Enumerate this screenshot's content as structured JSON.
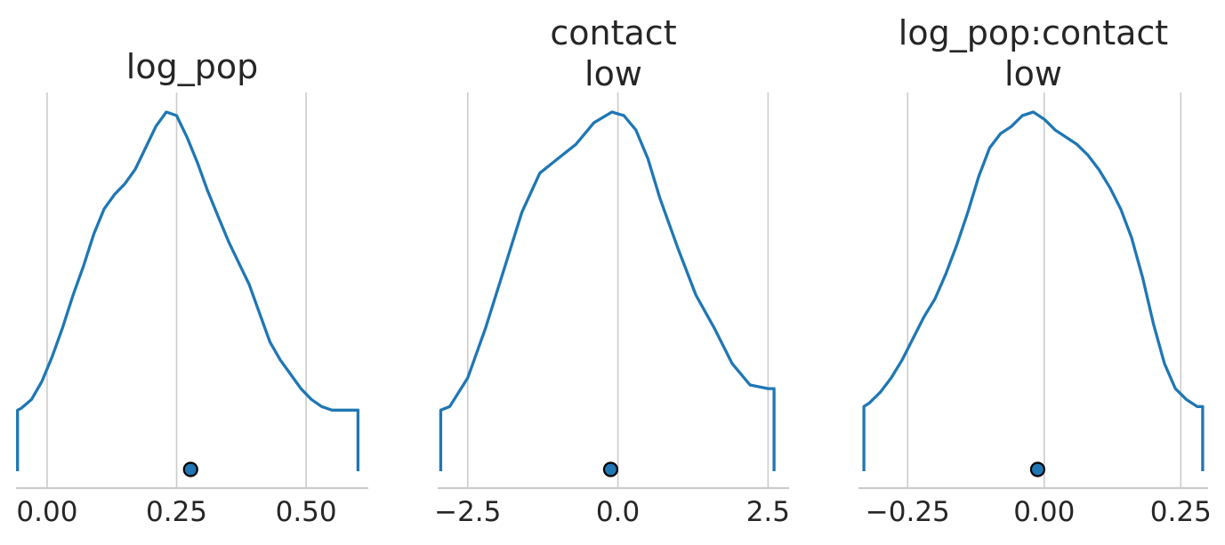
{
  "colors": {
    "curve": "#1f77b4",
    "point": "#1f77b4"
  },
  "chart_data": [
    {
      "type": "line",
      "title_lines": [
        "log_pop"
      ],
      "xlim": [
        -0.06,
        0.62
      ],
      "xticks": [
        0.0,
        0.25,
        0.5
      ],
      "xtick_labels": [
        "0.00",
        "0.25",
        "0.50"
      ],
      "grid": true,
      "x": [
        -0.057,
        -0.05,
        -0.03,
        -0.01,
        0.01,
        0.03,
        0.05,
        0.07,
        0.09,
        0.11,
        0.13,
        0.15,
        0.17,
        0.19,
        0.21,
        0.23,
        0.25,
        0.27,
        0.29,
        0.31,
        0.33,
        0.35,
        0.37,
        0.39,
        0.41,
        0.43,
        0.45,
        0.47,
        0.49,
        0.51,
        0.53,
        0.55,
        0.57,
        0.59,
        0.6
      ],
      "density": [
        0.17,
        0.175,
        0.2,
        0.25,
        0.32,
        0.4,
        0.49,
        0.57,
        0.66,
        0.73,
        0.77,
        0.8,
        0.84,
        0.9,
        0.96,
        1.0,
        0.99,
        0.93,
        0.86,
        0.78,
        0.71,
        0.64,
        0.58,
        0.52,
        0.44,
        0.36,
        0.31,
        0.27,
        0.23,
        0.2,
        0.18,
        0.17,
        0.17,
        0.17,
        0.17
      ],
      "point_estimate": 0.277
    },
    {
      "type": "line",
      "title_lines": [
        "contact",
        "low"
      ],
      "xlim": [
        -3.0,
        2.85
      ],
      "xticks": [
        -2.5,
        0.0,
        2.5
      ],
      "xtick_labels": [
        "−2.5",
        "0.0",
        "2.5"
      ],
      "grid": true,
      "x": [
        -2.95,
        -2.8,
        -2.5,
        -2.2,
        -1.9,
        -1.6,
        -1.3,
        -1.0,
        -0.7,
        -0.4,
        -0.1,
        0.1,
        0.3,
        0.5,
        0.7,
        1.0,
        1.3,
        1.6,
        1.9,
        2.2,
        2.5,
        2.6
      ],
      "density": [
        0.17,
        0.18,
        0.26,
        0.4,
        0.56,
        0.72,
        0.83,
        0.87,
        0.91,
        0.97,
        1.0,
        0.99,
        0.95,
        0.87,
        0.76,
        0.62,
        0.49,
        0.4,
        0.3,
        0.24,
        0.23,
        0.23
      ],
      "point_estimate": -0.12
    },
    {
      "type": "line",
      "title_lines": [
        "log_pop:contact",
        "low"
      ],
      "xlim": [
        -0.34,
        0.3
      ],
      "xticks": [
        -0.25,
        0.0,
        0.25
      ],
      "xtick_labels": [
        "−0.25",
        "0.00",
        "0.25"
      ],
      "grid": true,
      "x": [
        -0.33,
        -0.32,
        -0.3,
        -0.28,
        -0.26,
        -0.24,
        -0.22,
        -0.2,
        -0.18,
        -0.16,
        -0.14,
        -0.12,
        -0.1,
        -0.08,
        -0.06,
        -0.04,
        -0.02,
        0.0,
        0.02,
        0.04,
        0.06,
        0.08,
        0.1,
        0.12,
        0.14,
        0.16,
        0.18,
        0.2,
        0.22,
        0.24,
        0.26,
        0.28,
        0.29
      ],
      "density": [
        0.18,
        0.19,
        0.22,
        0.26,
        0.31,
        0.37,
        0.43,
        0.48,
        0.55,
        0.63,
        0.72,
        0.82,
        0.9,
        0.94,
        0.96,
        0.99,
        1.0,
        0.98,
        0.95,
        0.93,
        0.91,
        0.88,
        0.84,
        0.79,
        0.73,
        0.65,
        0.54,
        0.41,
        0.3,
        0.23,
        0.2,
        0.18,
        0.18
      ],
      "point_estimate": -0.012
    }
  ]
}
